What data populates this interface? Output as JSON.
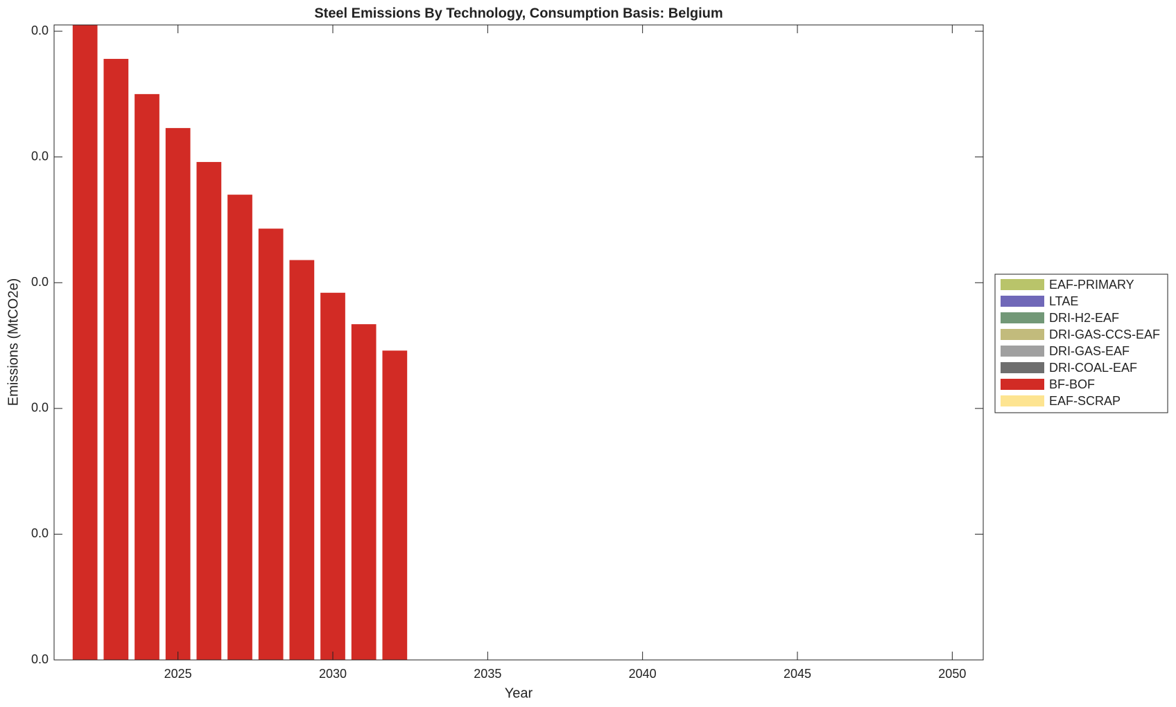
{
  "chart_data": {
    "type": "stacked-bar",
    "title": "Steel Emissions By Technology, Consumption Basis: Belgium",
    "xlabel": "Year",
    "ylabel": "Emissions (MtCO2e)",
    "x": [
      2022,
      2023,
      2024,
      2025,
      2026,
      2027,
      2028,
      2029,
      2030,
      2031,
      2032,
      2033,
      2034,
      2035,
      2036,
      2037,
      2038,
      2039,
      2040,
      2041,
      2042,
      2043,
      2044,
      2045,
      2046,
      2047,
      2048,
      2049,
      2050
    ],
    "series": [
      {
        "name": "EAF-SCRAP",
        "color": "#fde491",
        "values": [
          0,
          0,
          0,
          0,
          0,
          0,
          0,
          0,
          0,
          0,
          0,
          0,
          0,
          0,
          0,
          0,
          0,
          0,
          0,
          0,
          0,
          0,
          0,
          0,
          0,
          0,
          0,
          0,
          0
        ]
      },
      {
        "name": "BF-BOF",
        "color": "#d22b25",
        "values": [
          0.051,
          0.0478,
          0.045,
          0.0423,
          0.0396,
          0.037,
          0.0343,
          0.0318,
          0.0292,
          0.0267,
          0.0246,
          0,
          0,
          0,
          0,
          0,
          0,
          0,
          0,
          0,
          0,
          0,
          0,
          0,
          0,
          0,
          0,
          0,
          0
        ]
      },
      {
        "name": "DRI-COAL-EAF",
        "color": "#6e6e6e",
        "values": [
          0,
          0,
          0,
          0,
          0,
          0,
          0,
          0,
          0,
          0,
          0,
          0,
          0,
          0,
          0,
          0,
          0,
          0,
          0,
          0,
          0,
          0,
          0,
          0,
          0,
          0,
          0,
          0,
          0
        ]
      },
      {
        "name": "DRI-GAS-EAF",
        "color": "#a0a0a0",
        "values": [
          0,
          0,
          0,
          0,
          0,
          0,
          0,
          0,
          0,
          0,
          0,
          0,
          0,
          0,
          0,
          0,
          0,
          0,
          0,
          0,
          0,
          0,
          0,
          0,
          0,
          0,
          0,
          0,
          0
        ]
      },
      {
        "name": "DRI-GAS-CCS-EAF",
        "color": "#c2bb7c",
        "values": [
          0,
          0,
          0,
          0,
          0,
          0,
          0,
          0,
          0,
          0,
          0,
          0,
          0,
          0,
          0,
          0,
          0,
          0,
          0,
          0,
          0,
          0,
          0,
          0,
          0,
          0,
          0,
          0,
          0
        ]
      },
      {
        "name": "DRI-H2-EAF",
        "color": "#729877",
        "values": [
          0,
          0,
          0,
          0,
          0,
          0,
          0,
          0,
          0,
          0,
          0,
          0,
          0,
          0,
          0,
          0,
          0,
          0,
          0,
          0,
          0,
          0,
          0,
          0,
          0,
          0,
          0,
          0,
          0
        ]
      },
      {
        "name": "LTAE",
        "color": "#7068b8",
        "values": [
          0,
          0,
          0,
          0,
          0,
          0,
          0,
          0,
          0,
          0,
          0,
          0,
          0,
          0,
          0,
          0,
          0,
          0,
          0,
          0,
          0,
          0,
          0,
          0,
          0,
          0,
          0,
          0,
          0
        ]
      },
      {
        "name": "EAF-PRIMARY",
        "color": "#b9c46a",
        "values": [
          0,
          0,
          0,
          0,
          0,
          0,
          0,
          0,
          0,
          0,
          0,
          0,
          0,
          0,
          0,
          0,
          0,
          0,
          0,
          0,
          0,
          0,
          0,
          0,
          0,
          0,
          0,
          0,
          0
        ]
      }
    ],
    "xlim": [
      2021,
      2051
    ],
    "xticks": [
      2025,
      2030,
      2035,
      2040,
      2045,
      2050
    ],
    "ylim": [
      0,
      0.0505
    ],
    "yticks": [
      {
        "value": 0,
        "label": "0.0"
      },
      {
        "value": 0.01,
        "label": "0.0"
      },
      {
        "value": 0.02,
        "label": "0.0"
      },
      {
        "value": 0.03,
        "label": "0.0"
      },
      {
        "value": 0.04,
        "label": "0.0"
      },
      {
        "value": 0.05,
        "label": "0.0"
      }
    ],
    "legend": "right"
  }
}
